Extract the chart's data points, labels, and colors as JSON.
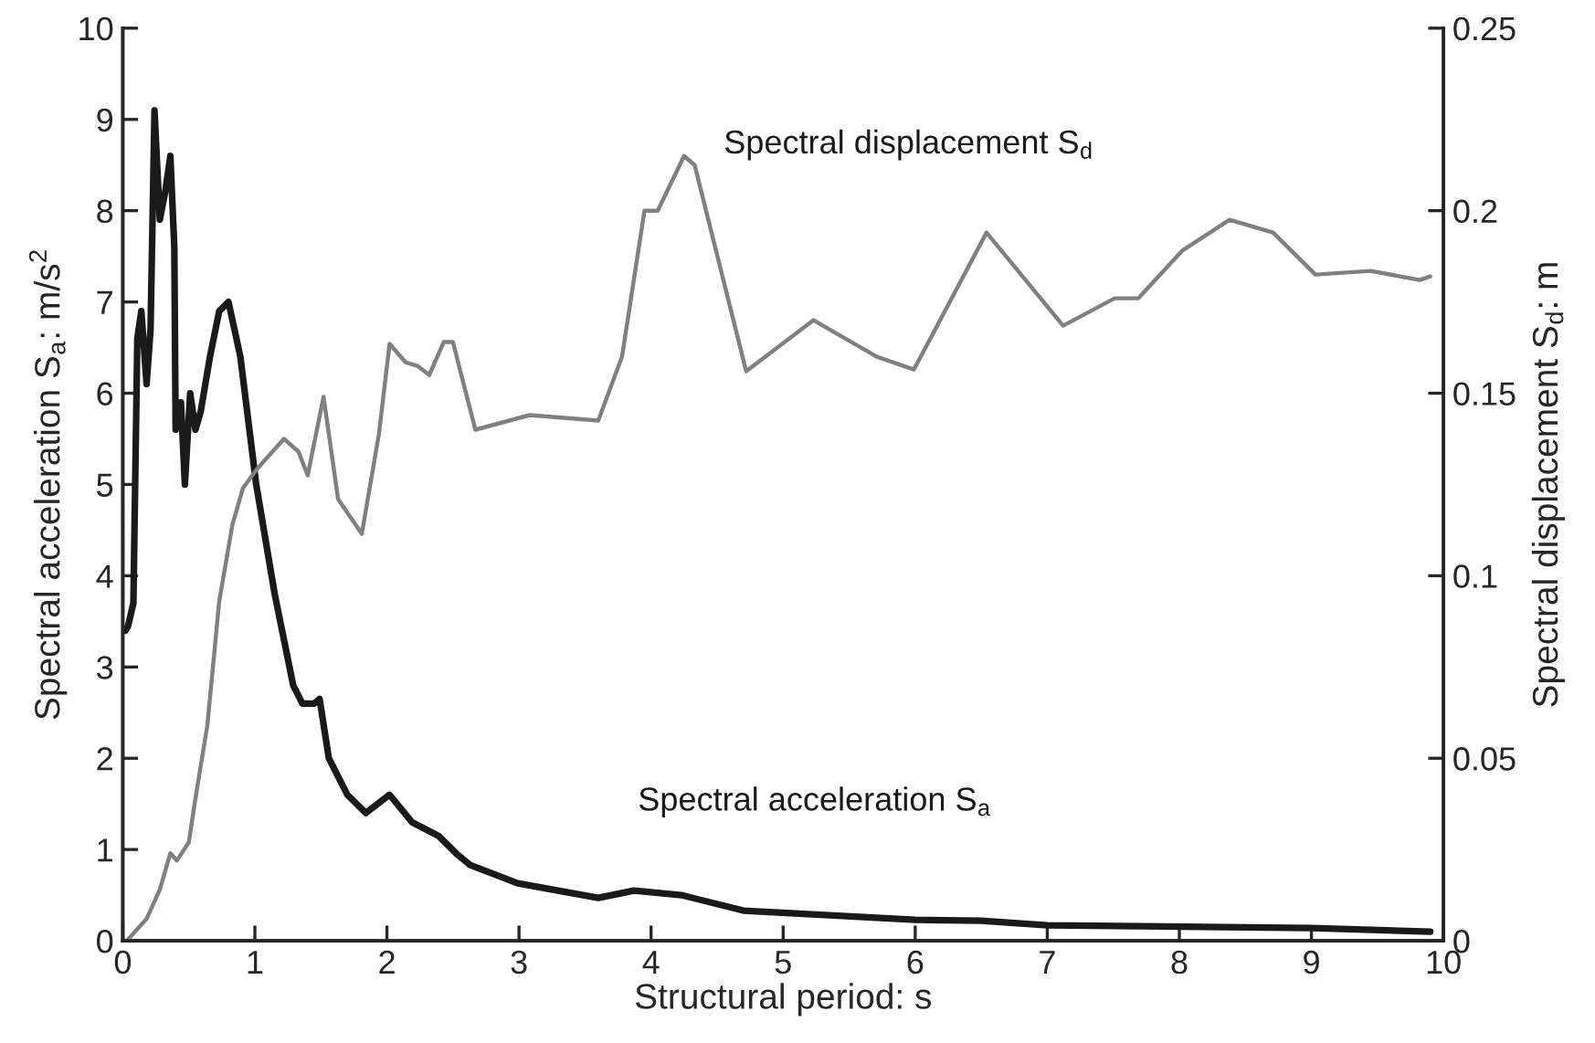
{
  "chart_data": {
    "type": "line",
    "xlabel": "Structural period: s",
    "ylabel": "Spectral acceleration S$_{a}$: m/s$^{2}$",
    "y2label": "Spectral displacement S$_{d}$: m",
    "xlim": [
      0,
      10
    ],
    "xticks": [
      0,
      1,
      2,
      3,
      4,
      5,
      6,
      7,
      8,
      9,
      10
    ],
    "ylim": [
      0,
      10
    ],
    "yticks": [
      0,
      1,
      2,
      3,
      4,
      5,
      6,
      7,
      8,
      9,
      10
    ],
    "y2lim": [
      0,
      0.25
    ],
    "y2ticks": [
      0,
      0.05,
      0.1,
      0.15,
      0.2,
      0.25
    ],
    "grid": false,
    "legend": false,
    "series": [
      {
        "name": "Spectral acceleration S$_{a}$",
        "color": "#1a1a1a",
        "axis": "y",
        "x": [
          0.02,
          0.04,
          0.08,
          0.11,
          0.14,
          0.18,
          0.21,
          0.24,
          0.28,
          0.32,
          0.36,
          0.39,
          0.4,
          0.44,
          0.47,
          0.51,
          0.55,
          0.59,
          0.66,
          0.73,
          0.8,
          0.89,
          1.01,
          1.15,
          1.29,
          1.36,
          1.45,
          1.49,
          1.56,
          1.7,
          1.84,
          2.02,
          2.19,
          2.39,
          2.53,
          2.63,
          2.99,
          3.6,
          3.87,
          4.23,
          4.7,
          6.0,
          6.5,
          7.0,
          9.0,
          9.9
        ],
        "values": [
          3.4,
          3.45,
          3.7,
          6.6,
          6.9,
          6.1,
          6.7,
          9.1,
          7.9,
          8.2,
          8.6,
          7.6,
          5.6,
          5.9,
          5.0,
          6.0,
          5.6,
          5.8,
          6.4,
          6.9,
          7.0,
          6.4,
          5.0,
          3.8,
          2.8,
          2.6,
          2.6,
          2.65,
          2.0,
          1.6,
          1.4,
          1.6,
          1.3,
          1.15,
          0.95,
          0.83,
          0.63,
          0.47,
          0.55,
          0.5,
          0.33,
          0.23,
          0.22,
          0.17,
          0.14,
          0.1
        ]
      },
      {
        "name": "Spectral displacement S$_{d}$",
        "color": "#808080",
        "axis": "y2",
        "x": [
          0.03,
          0.18,
          0.28,
          0.36,
          0.41,
          0.5,
          0.55,
          0.64,
          0.73,
          0.83,
          0.91,
          1.01,
          1.22,
          1.33,
          1.4,
          1.52,
          1.63,
          1.81,
          1.94,
          2.02,
          2.14,
          2.23,
          2.32,
          2.43,
          2.5,
          2.57,
          2.67,
          3.08,
          3.6,
          3.78,
          3.95,
          4.05,
          4.25,
          4.33,
          4.72,
          5.23,
          5.71,
          5.99,
          6.54,
          7.12,
          7.51,
          7.69,
          8.02,
          8.38,
          8.71,
          9.03,
          9.45,
          9.82,
          9.9
        ],
        "values": [
          0.0,
          0.006,
          0.014,
          0.024,
          0.022,
          0.027,
          0.039,
          0.059,
          0.093,
          0.114,
          0.124,
          0.129,
          0.1375,
          0.134,
          0.1275,
          0.149,
          0.121,
          0.1115,
          0.139,
          0.1635,
          0.1585,
          0.1575,
          0.155,
          0.164,
          0.164,
          0.154,
          0.14,
          0.144,
          0.1425,
          0.16,
          0.2,
          0.2,
          0.215,
          0.2125,
          0.156,
          0.17,
          0.16,
          0.1565,
          0.194,
          0.1685,
          0.176,
          0.176,
          0.189,
          0.1975,
          0.194,
          0.1825,
          0.1835,
          0.181,
          0.182
        ]
      }
    ]
  }
}
